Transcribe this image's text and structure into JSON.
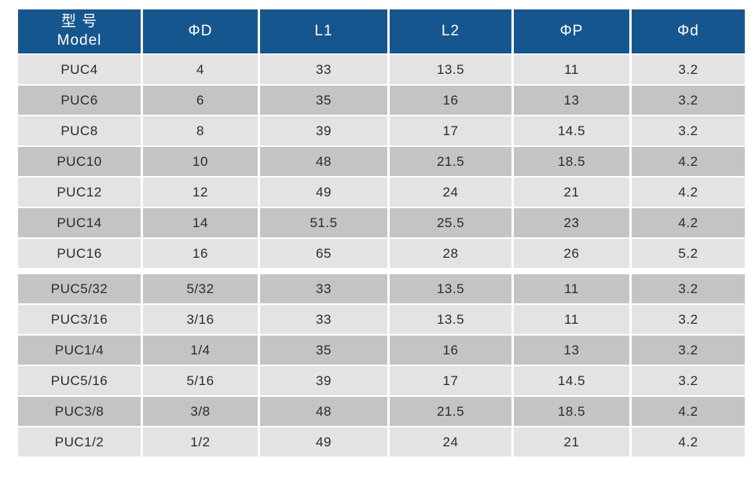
{
  "page": {
    "background": "#ffffff"
  },
  "colors": {
    "header_bg": "#16568E",
    "header_text": "#FFFFFF",
    "row_light": "#E3E3E3",
    "row_dark": "#C4C4C3",
    "cell_text": "#2B2B2B",
    "separator": "#FFFFFF"
  },
  "table": {
    "model_header": {
      "line1": "型 号",
      "line2": "Model"
    },
    "column_headers": [
      "ΦD",
      "L1",
      "L2",
      "ΦP",
      "Φd"
    ],
    "sections": [
      {
        "rows": [
          [
            "PUC4",
            "4",
            "33",
            "13.5",
            "11",
            "3.2"
          ],
          [
            "PUC6",
            "6",
            "35",
            "16",
            "13",
            "3.2"
          ],
          [
            "PUC8",
            "8",
            "39",
            "17",
            "14.5",
            "3.2"
          ],
          [
            "PUC10",
            "10",
            "48",
            "21.5",
            "18.5",
            "4.2"
          ],
          [
            "PUC12",
            "12",
            "49",
            "24",
            "21",
            "4.2"
          ],
          [
            "PUC14",
            "14",
            "51.5",
            "25.5",
            "23",
            "4.2"
          ],
          [
            "PUC16",
            "16",
            "65",
            "28",
            "26",
            "5.2"
          ]
        ]
      },
      {
        "rows": [
          [
            "PUC5/32",
            "5/32",
            "33",
            "13.5",
            "11",
            "3.2"
          ],
          [
            "PUC3/16",
            "3/16",
            "33",
            "13.5",
            "11",
            "3.2"
          ],
          [
            "PUC1/4",
            "1/4",
            "35",
            "16",
            "13",
            "3.2"
          ],
          [
            "PUC5/16",
            "5/16",
            "39",
            "17",
            "14.5",
            "3.2"
          ],
          [
            "PUC3/8",
            "3/8",
            "48",
            "21.5",
            "18.5",
            "4.2"
          ],
          [
            "PUC1/2",
            "1/2",
            "49",
            "24",
            "21",
            "4.2"
          ]
        ]
      }
    ]
  }
}
